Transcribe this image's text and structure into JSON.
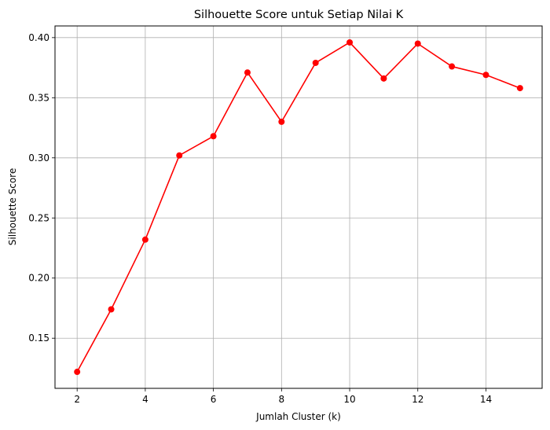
{
  "chart_data": {
    "type": "line",
    "title": "Silhouette Score untuk Setiap Nilai K",
    "xlabel": "Jumlah Cluster (k)",
    "ylabel": "Silhouette Score",
    "x": [
      2,
      3,
      4,
      5,
      6,
      7,
      8,
      9,
      10,
      11,
      12,
      13,
      14,
      15
    ],
    "series": [
      {
        "values": [
          0.122,
          0.174,
          0.232,
          0.302,
          0.318,
          0.371,
          0.33,
          0.379,
          0.396,
          0.366,
          0.395,
          0.376,
          0.369,
          0.358
        ],
        "color": "#ff0000",
        "marker": "circle"
      }
    ],
    "xlim": [
      1.35,
      15.65
    ],
    "ylim": [
      0.1083,
      0.4097
    ],
    "xticks": [
      2,
      4,
      6,
      8,
      10,
      12,
      14
    ],
    "xtick_labels": [
      "2",
      "4",
      "6",
      "8",
      "10",
      "12",
      "14"
    ],
    "yticks": [
      0.15,
      0.2,
      0.25,
      0.3,
      0.35,
      0.4
    ],
    "ytick_labels": [
      "0.15",
      "0.20",
      "0.25",
      "0.30",
      "0.35",
      "0.40"
    ],
    "grid": true,
    "grid_color": "#b0b0b0"
  }
}
